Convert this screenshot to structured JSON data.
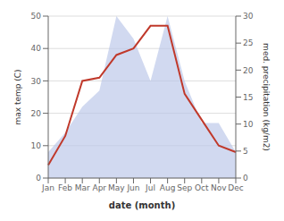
{
  "chart_data": {
    "type": "line",
    "xlabel": "date (month)",
    "ylabel": "max temp (C)",
    "y2label": "med. precipitation (kg/m2)",
    "categories": [
      "Jan",
      "Feb",
      "Mar",
      "Apr",
      "May",
      "Jun",
      "Jul",
      "Aug",
      "Sep",
      "Oct",
      "Nov",
      "Dec"
    ],
    "series": [
      {
        "type": "area",
        "color": "#b8c4e8",
        "values": [
          8,
          14,
          22,
          27,
          50,
          43,
          30,
          50,
          30,
          17,
          17,
          8
        ]
      },
      {
        "type": "line",
        "color": "#c0392b",
        "values": [
          4,
          13,
          30,
          31,
          38,
          40,
          47,
          47,
          26,
          18,
          10,
          8
        ]
      }
    ],
    "ylim": [
      0,
      50
    ],
    "yticks": [
      0,
      10,
      20,
      30,
      40,
      50
    ],
    "y2lim": [
      0,
      30
    ],
    "y2ticks": [
      0,
      5,
      10,
      15,
      20,
      25,
      30
    ],
    "grid": true
  }
}
